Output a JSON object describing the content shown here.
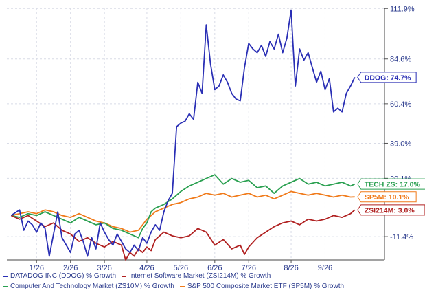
{
  "chart_data": {
    "type": "line",
    "title": "",
    "xlabel": "",
    "ylabel": "",
    "ylim": [
      -24,
      112
    ],
    "y_ticks": [
      {
        "value": 111.9,
        "label": "111.9%"
      },
      {
        "value": 84.6,
        "label": "84.6%"
      },
      {
        "value": 60.4,
        "label": "60.4%"
      },
      {
        "value": 39.0,
        "label": "39.0%"
      },
      {
        "value": 20.1,
        "label": "20.1%"
      },
      {
        "value": -11.4,
        "label": "-11.4%"
      }
    ],
    "x_ticks": [
      {
        "week": 3,
        "label": "1/26"
      },
      {
        "week": 7,
        "label": "2/26"
      },
      {
        "week": 11,
        "label": "3/26"
      },
      {
        "week": 16,
        "label": "4/26"
      },
      {
        "week": 20,
        "label": "5/26"
      },
      {
        "week": 24,
        "label": "6/26"
      },
      {
        "week": 28,
        "label": "7/26"
      },
      {
        "week": 33,
        "label": "8/26"
      },
      {
        "week": 37,
        "label": "9/26"
      }
    ],
    "grid": true,
    "legend_position": "bottom",
    "series": [
      {
        "name": "DATADOG INC (DDOG) % Growth",
        "color": "#2a2fb5",
        "end_label": "DDOG: 74.7%",
        "values": [
          {
            "week": 0,
            "value": 0
          },
          {
            "week": 1,
            "value": 3
          },
          {
            "week": 1.5,
            "value": -8
          },
          {
            "week": 2,
            "value": -3
          },
          {
            "week": 2.5,
            "value": -5
          },
          {
            "week": 3,
            "value": -9
          },
          {
            "week": 3.5,
            "value": -4
          },
          {
            "week": 4,
            "value": -7
          },
          {
            "week": 4.5,
            "value": -22
          },
          {
            "week": 5,
            "value": -10
          },
          {
            "week": 5.5,
            "value": 2
          },
          {
            "week": 6,
            "value": -12
          },
          {
            "week": 6.5,
            "value": -16
          },
          {
            "week": 7,
            "value": -20
          },
          {
            "week": 7.5,
            "value": -10
          },
          {
            "week": 8,
            "value": -8
          },
          {
            "week": 8.5,
            "value": -14
          },
          {
            "week": 9,
            "value": -22
          },
          {
            "week": 9.5,
            "value": -12
          },
          {
            "week": 10,
            "value": -18
          },
          {
            "week": 10.5,
            "value": -4
          },
          {
            "week": 11,
            "value": -9
          },
          {
            "week": 11.5,
            "value": -13
          },
          {
            "week": 12,
            "value": -16
          },
          {
            "week": 12.5,
            "value": -10
          },
          {
            "week": 13,
            "value": -14
          },
          {
            "week": 13.5,
            "value": -18
          },
          {
            "week": 14,
            "value": -20
          },
          {
            "week": 14.5,
            "value": -16
          },
          {
            "week": 15,
            "value": -19
          },
          {
            "week": 15.5,
            "value": -12
          },
          {
            "week": 16,
            "value": -15
          },
          {
            "week": 16.5,
            "value": -9
          },
          {
            "week": 17,
            "value": -5
          },
          {
            "week": 17.5,
            "value": -8
          },
          {
            "week": 18,
            "value": 2
          },
          {
            "week": 18.5,
            "value": 8
          },
          {
            "week": 19,
            "value": 12
          },
          {
            "week": 19.5,
            "value": 48
          },
          {
            "week": 20,
            "value": 50
          },
          {
            "week": 20.5,
            "value": 51
          },
          {
            "week": 21,
            "value": 55
          },
          {
            "week": 21.5,
            "value": 52
          },
          {
            "week": 22,
            "value": 72
          },
          {
            "week": 22.5,
            "value": 66
          },
          {
            "week": 23,
            "value": 103
          },
          {
            "week": 23.5,
            "value": 82
          },
          {
            "week": 24,
            "value": 68
          },
          {
            "week": 24.5,
            "value": 70
          },
          {
            "week": 25,
            "value": 76
          },
          {
            "week": 25.5,
            "value": 72
          },
          {
            "week": 26,
            "value": 66
          },
          {
            "week": 26.5,
            "value": 63
          },
          {
            "week": 27,
            "value": 62
          },
          {
            "week": 27.5,
            "value": 80
          },
          {
            "week": 28,
            "value": 93
          },
          {
            "week": 28.5,
            "value": 90
          },
          {
            "week": 29,
            "value": 88
          },
          {
            "week": 29.5,
            "value": 92
          },
          {
            "week": 30,
            "value": 86
          },
          {
            "week": 30.5,
            "value": 94
          },
          {
            "week": 31,
            "value": 90
          },
          {
            "week": 31.5,
            "value": 98
          },
          {
            "week": 32,
            "value": 88
          },
          {
            "week": 32.5,
            "value": 96
          },
          {
            "week": 33,
            "value": 111
          },
          {
            "week": 33.5,
            "value": 70
          },
          {
            "week": 34,
            "value": 90
          },
          {
            "week": 34.5,
            "value": 84
          },
          {
            "week": 35,
            "value": 88
          },
          {
            "week": 35.5,
            "value": 80
          },
          {
            "week": 36,
            "value": 72
          },
          {
            "week": 36.5,
            "value": 78
          },
          {
            "week": 37,
            "value": 68
          },
          {
            "week": 37.5,
            "value": 74
          },
          {
            "week": 38,
            "value": 56
          },
          {
            "week": 38.5,
            "value": 58
          },
          {
            "week": 39,
            "value": 56
          },
          {
            "week": 39.5,
            "value": 66
          },
          {
            "week": 40,
            "value": 70
          },
          {
            "week": 40.5,
            "value": 74.7
          }
        ]
      },
      {
        "name": "Internet Software Market (ZSI214M) % Growth",
        "color": "#b02020",
        "end_label": "ZSI214M: 3.0%",
        "values": [
          {
            "week": 0,
            "value": 0
          },
          {
            "week": 1,
            "value": -2
          },
          {
            "week": 2,
            "value": 0
          },
          {
            "week": 3,
            "value": -3
          },
          {
            "week": 4,
            "value": -6
          },
          {
            "week": 5,
            "value": -4
          },
          {
            "week": 6,
            "value": -8
          },
          {
            "week": 7,
            "value": -10
          },
          {
            "week": 8,
            "value": -14
          },
          {
            "week": 9,
            "value": -12
          },
          {
            "week": 10,
            "value": -15
          },
          {
            "week": 11,
            "value": -17
          },
          {
            "week": 12,
            "value": -14
          },
          {
            "week": 13,
            "value": -16
          },
          {
            "week": 13.5,
            "value": -24
          },
          {
            "week": 14,
            "value": -20
          },
          {
            "week": 14.5,
            "value": -22
          },
          {
            "week": 15,
            "value": -18
          },
          {
            "week": 15.5,
            "value": -20
          },
          {
            "week": 16,
            "value": -17
          },
          {
            "week": 16.5,
            "value": -19
          },
          {
            "week": 17,
            "value": -13
          },
          {
            "week": 18,
            "value": -9
          },
          {
            "week": 19,
            "value": -11
          },
          {
            "week": 20,
            "value": -12
          },
          {
            "week": 21,
            "value": -11
          },
          {
            "week": 22,
            "value": -7
          },
          {
            "week": 23,
            "value": -9
          },
          {
            "week": 24,
            "value": -16
          },
          {
            "week": 25,
            "value": -13
          },
          {
            "week": 26,
            "value": -18
          },
          {
            "week": 27,
            "value": -16
          },
          {
            "week": 27.5,
            "value": -21
          },
          {
            "week": 28,
            "value": -17
          },
          {
            "week": 29,
            "value": -12
          },
          {
            "week": 30,
            "value": -9
          },
          {
            "week": 31,
            "value": -6
          },
          {
            "week": 32,
            "value": -4
          },
          {
            "week": 33,
            "value": -3
          },
          {
            "week": 34,
            "value": -5
          },
          {
            "week": 35,
            "value": -2
          },
          {
            "week": 36,
            "value": -3
          },
          {
            "week": 37,
            "value": -2
          },
          {
            "week": 38,
            "value": 0
          },
          {
            "week": 39,
            "value": -1
          },
          {
            "week": 40,
            "value": 1
          },
          {
            "week": 40.5,
            "value": 3.0
          }
        ]
      },
      {
        "name": "Computer And Technology Market (ZS10M) % Growth",
        "color": "#2aa050",
        "end_label": "TECH ZS: 17.0%",
        "values": [
          {
            "week": 0,
            "value": 0
          },
          {
            "week": 1,
            "value": -1
          },
          {
            "week": 2,
            "value": 1
          },
          {
            "week": 3,
            "value": 0
          },
          {
            "week": 4,
            "value": 2
          },
          {
            "week": 5,
            "value": 0
          },
          {
            "week": 6,
            "value": -2
          },
          {
            "week": 7,
            "value": -4
          },
          {
            "week": 8,
            "value": -1
          },
          {
            "week": 9,
            "value": -3
          },
          {
            "week": 10,
            "value": -5
          },
          {
            "week": 11,
            "value": -4
          },
          {
            "week": 12,
            "value": -7
          },
          {
            "week": 13,
            "value": -8
          },
          {
            "week": 14,
            "value": -10
          },
          {
            "week": 15,
            "value": -12
          },
          {
            "week": 15.5,
            "value": -7
          },
          {
            "week": 16,
            "value": -4
          },
          {
            "week": 16.5,
            "value": 2
          },
          {
            "week": 17,
            "value": 4
          },
          {
            "week": 18,
            "value": 6
          },
          {
            "week": 19,
            "value": 9
          },
          {
            "week": 20,
            "value": 13
          },
          {
            "week": 21,
            "value": 16
          },
          {
            "week": 22,
            "value": 18
          },
          {
            "week": 23,
            "value": 20
          },
          {
            "week": 24,
            "value": 22
          },
          {
            "week": 25,
            "value": 17
          },
          {
            "week": 26,
            "value": 20
          },
          {
            "week": 27,
            "value": 18
          },
          {
            "week": 28,
            "value": 19
          },
          {
            "week": 29,
            "value": 15
          },
          {
            "week": 30,
            "value": 16
          },
          {
            "week": 31,
            "value": 12
          },
          {
            "week": 32,
            "value": 16
          },
          {
            "week": 33,
            "value": 18
          },
          {
            "week": 34,
            "value": 20
          },
          {
            "week": 35,
            "value": 17
          },
          {
            "week": 36,
            "value": 18
          },
          {
            "week": 37,
            "value": 16
          },
          {
            "week": 38,
            "value": 17
          },
          {
            "week": 39,
            "value": 18
          },
          {
            "week": 40,
            "value": 16
          },
          {
            "week": 40.5,
            "value": 17.0
          }
        ]
      },
      {
        "name": "S&P 500 Composite Market ETF (SP5M) % Growth",
        "color": "#f07a1a",
        "end_label": "SP5M: 10.1%",
        "values": [
          {
            "week": 0,
            "value": 0
          },
          {
            "week": 1,
            "value": 1
          },
          {
            "week": 2,
            "value": 2
          },
          {
            "week": 3,
            "value": 1
          },
          {
            "week": 4,
            "value": 3
          },
          {
            "week": 5,
            "value": 2
          },
          {
            "week": 6,
            "value": 0
          },
          {
            "week": 7,
            "value": -1
          },
          {
            "week": 8,
            "value": 1
          },
          {
            "week": 9,
            "value": -1
          },
          {
            "week": 10,
            "value": -3
          },
          {
            "week": 11,
            "value": -4
          },
          {
            "week": 12,
            "value": -6
          },
          {
            "week": 13,
            "value": -7
          },
          {
            "week": 14,
            "value": -9
          },
          {
            "week": 15,
            "value": -8
          },
          {
            "week": 15.5,
            "value": -5
          },
          {
            "week": 16,
            "value": -2
          },
          {
            "week": 17,
            "value": 2
          },
          {
            "week": 18,
            "value": 4
          },
          {
            "week": 19,
            "value": 6
          },
          {
            "week": 20,
            "value": 7
          },
          {
            "week": 21,
            "value": 9
          },
          {
            "week": 22,
            "value": 10
          },
          {
            "week": 23,
            "value": 12
          },
          {
            "week": 24,
            "value": 11
          },
          {
            "week": 25,
            "value": 12
          },
          {
            "week": 26,
            "value": 10
          },
          {
            "week": 27,
            "value": 11
          },
          {
            "week": 28,
            "value": 12
          },
          {
            "week": 29,
            "value": 10
          },
          {
            "week": 30,
            "value": 11
          },
          {
            "week": 31,
            "value": 9
          },
          {
            "week": 32,
            "value": 11
          },
          {
            "week": 33,
            "value": 13
          },
          {
            "week": 34,
            "value": 12
          },
          {
            "week": 35,
            "value": 11
          },
          {
            "week": 36,
            "value": 12
          },
          {
            "week": 37,
            "value": 11
          },
          {
            "week": 38,
            "value": 10
          },
          {
            "week": 39,
            "value": 11
          },
          {
            "week": 40,
            "value": 10
          },
          {
            "week": 40.5,
            "value": 10.1
          }
        ]
      }
    ]
  },
  "legend": {
    "rows": [
      [
        {
          "label": "DATADOG INC (DDOG) % Growth",
          "color": "#2a2fb5"
        },
        {
          "label": "Internet Software Market (ZSI214M) % Growth",
          "color": "#b02020"
        }
      ],
      [
        {
          "label": "Computer And Technology Market (ZS10M) % Growth",
          "color": "#2aa050"
        },
        {
          "label": "S&P 500 Composite Market ETF (SP5M) % Growth",
          "color": "#f07a1a"
        }
      ]
    ]
  }
}
